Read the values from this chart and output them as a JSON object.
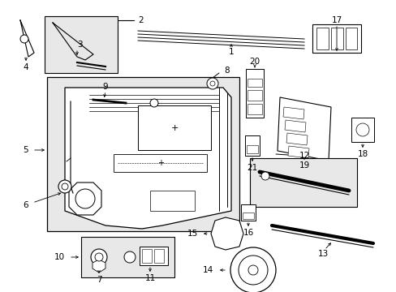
{
  "bg_color": "#ffffff",
  "box_fill": "#e8e8e8",
  "line_color": "#000000",
  "text_color": "#000000",
  "figw": 4.89,
  "figh": 3.6,
  "dpi": 100
}
